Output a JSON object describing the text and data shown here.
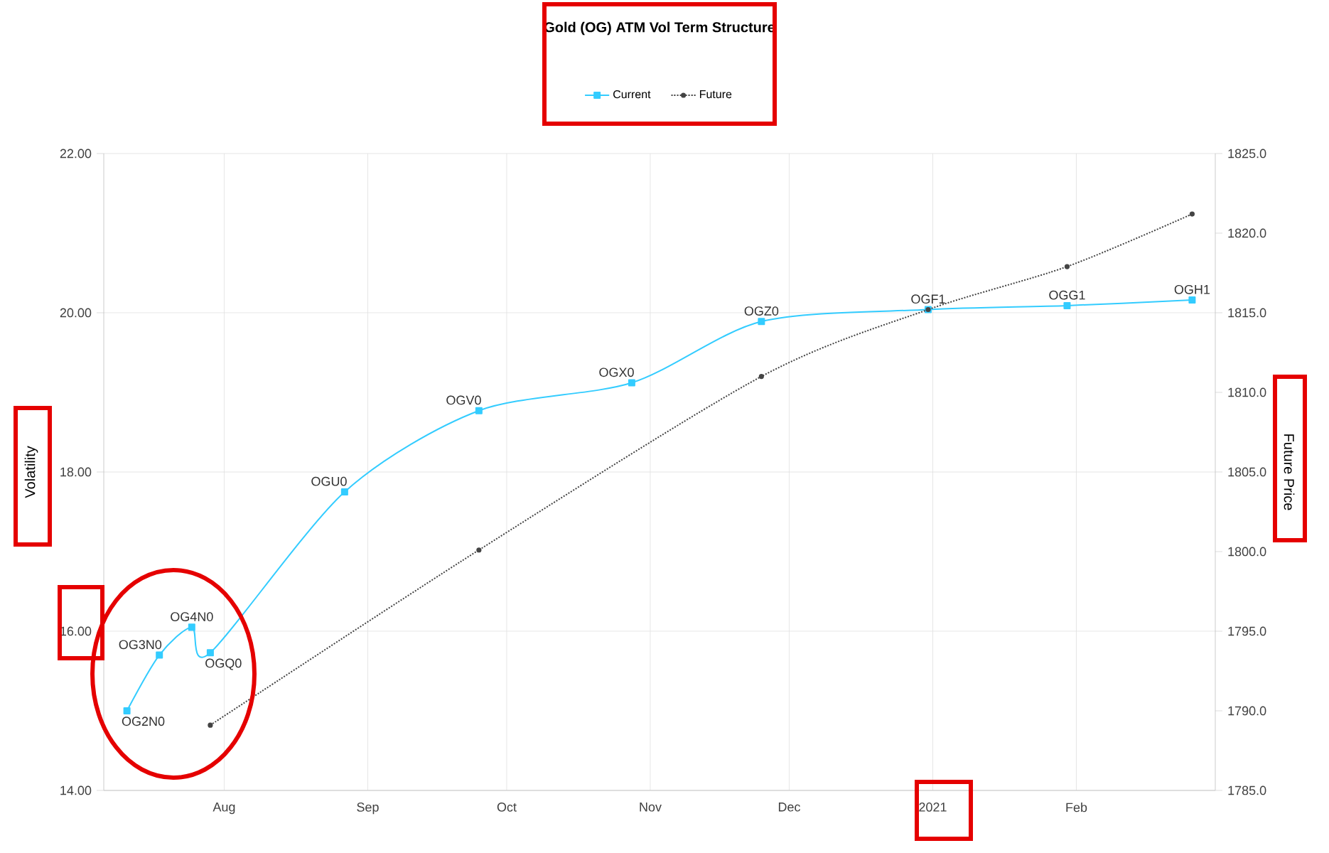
{
  "chart_data": {
    "type": "line",
    "title": "Gold (OG) ATM Vol Term Structure",
    "ylabel": "Volatility",
    "y2label": "Future Price",
    "xlim": [
      "2020-07-06",
      "2021-03-03"
    ],
    "xticks": [
      {
        "value": "2020-08-01",
        "label": "Aug"
      },
      {
        "value": "2020-09-01",
        "label": "Sep"
      },
      {
        "value": "2020-10-01",
        "label": "Oct"
      },
      {
        "value": "2020-11-01",
        "label": "Nov"
      },
      {
        "value": "2020-12-01",
        "label": "Dec"
      },
      {
        "value": "2021-01-01",
        "label": "2021"
      },
      {
        "value": "2021-02-01",
        "label": "Feb"
      }
    ],
    "ylim": [
      14,
      22
    ],
    "yticks": [
      {
        "value": 14,
        "label": "14.00"
      },
      {
        "value": 16,
        "label": "16.00"
      },
      {
        "value": 18,
        "label": "18.00"
      },
      {
        "value": 20,
        "label": "20.00"
      },
      {
        "value": 22,
        "label": "22.00"
      }
    ],
    "y2lim": [
      1785,
      1825
    ],
    "y2ticks": [
      {
        "value": 1785,
        "label": "1785.0"
      },
      {
        "value": 1790,
        "label": "1790.0"
      },
      {
        "value": 1795,
        "label": "1795.0"
      },
      {
        "value": 1800,
        "label": "1800.0"
      },
      {
        "value": 1805,
        "label": "1805.0"
      },
      {
        "value": 1810,
        "label": "1810.0"
      },
      {
        "value": 1815,
        "label": "1815.0"
      },
      {
        "value": 1820,
        "label": "1820.0"
      },
      {
        "value": 1825,
        "label": "1825.0"
      }
    ],
    "series": [
      {
        "name": "Current",
        "color": "#33ccff",
        "marker": "square",
        "line_style": "solid",
        "x": [
          "2020-07-11",
          "2020-07-18",
          "2020-07-25",
          "2020-07-29",
          "2020-08-27",
          "2020-09-25",
          "2020-10-28",
          "2020-11-25",
          "2020-12-31",
          "2021-01-30",
          "2021-02-26"
        ],
        "values": [
          15.0,
          15.7,
          16.05,
          15.73,
          17.75,
          18.77,
          19.12,
          19.89,
          20.04,
          20.09,
          20.16
        ]
      },
      {
        "name": "Future",
        "color": "#444444",
        "marker": "circle",
        "line_style": "dotted",
        "axis": "y2",
        "x": [
          "2020-07-29",
          "2020-09-25",
          "2020-11-25",
          "2020-12-31",
          "2021-01-30",
          "2021-02-26"
        ],
        "values": [
          1789.1,
          1800.1,
          1811.0,
          1815.2,
          1817.9,
          1821.2
        ]
      }
    ],
    "annotations": [
      {
        "text": "OG2N0",
        "x": "2020-07-11",
        "y": 15.0
      },
      {
        "text": "OG3N0",
        "x": "2020-07-18",
        "y": 15.7
      },
      {
        "text": "OG4N0",
        "x": "2020-07-25",
        "y": 16.05
      },
      {
        "text": "OGQ0",
        "x": "2020-07-29",
        "y": 15.73
      },
      {
        "text": "OGU0",
        "x": "2020-08-27",
        "y": 17.75
      },
      {
        "text": "OGV0",
        "x": "2020-09-25",
        "y": 18.77
      },
      {
        "text": "OGX0",
        "x": "2020-10-28",
        "y": 19.12
      },
      {
        "text": "OGZ0",
        "x": "2020-11-25",
        "y": 19.89
      },
      {
        "text": "OGF1",
        "x": "2020-12-31",
        "y": 20.04
      },
      {
        "text": "OGG1",
        "x": "2021-01-30",
        "y": 20.09
      },
      {
        "text": "OGH1",
        "x": "2021-02-26",
        "y": 20.16
      }
    ],
    "grid": true,
    "legend": "top"
  }
}
